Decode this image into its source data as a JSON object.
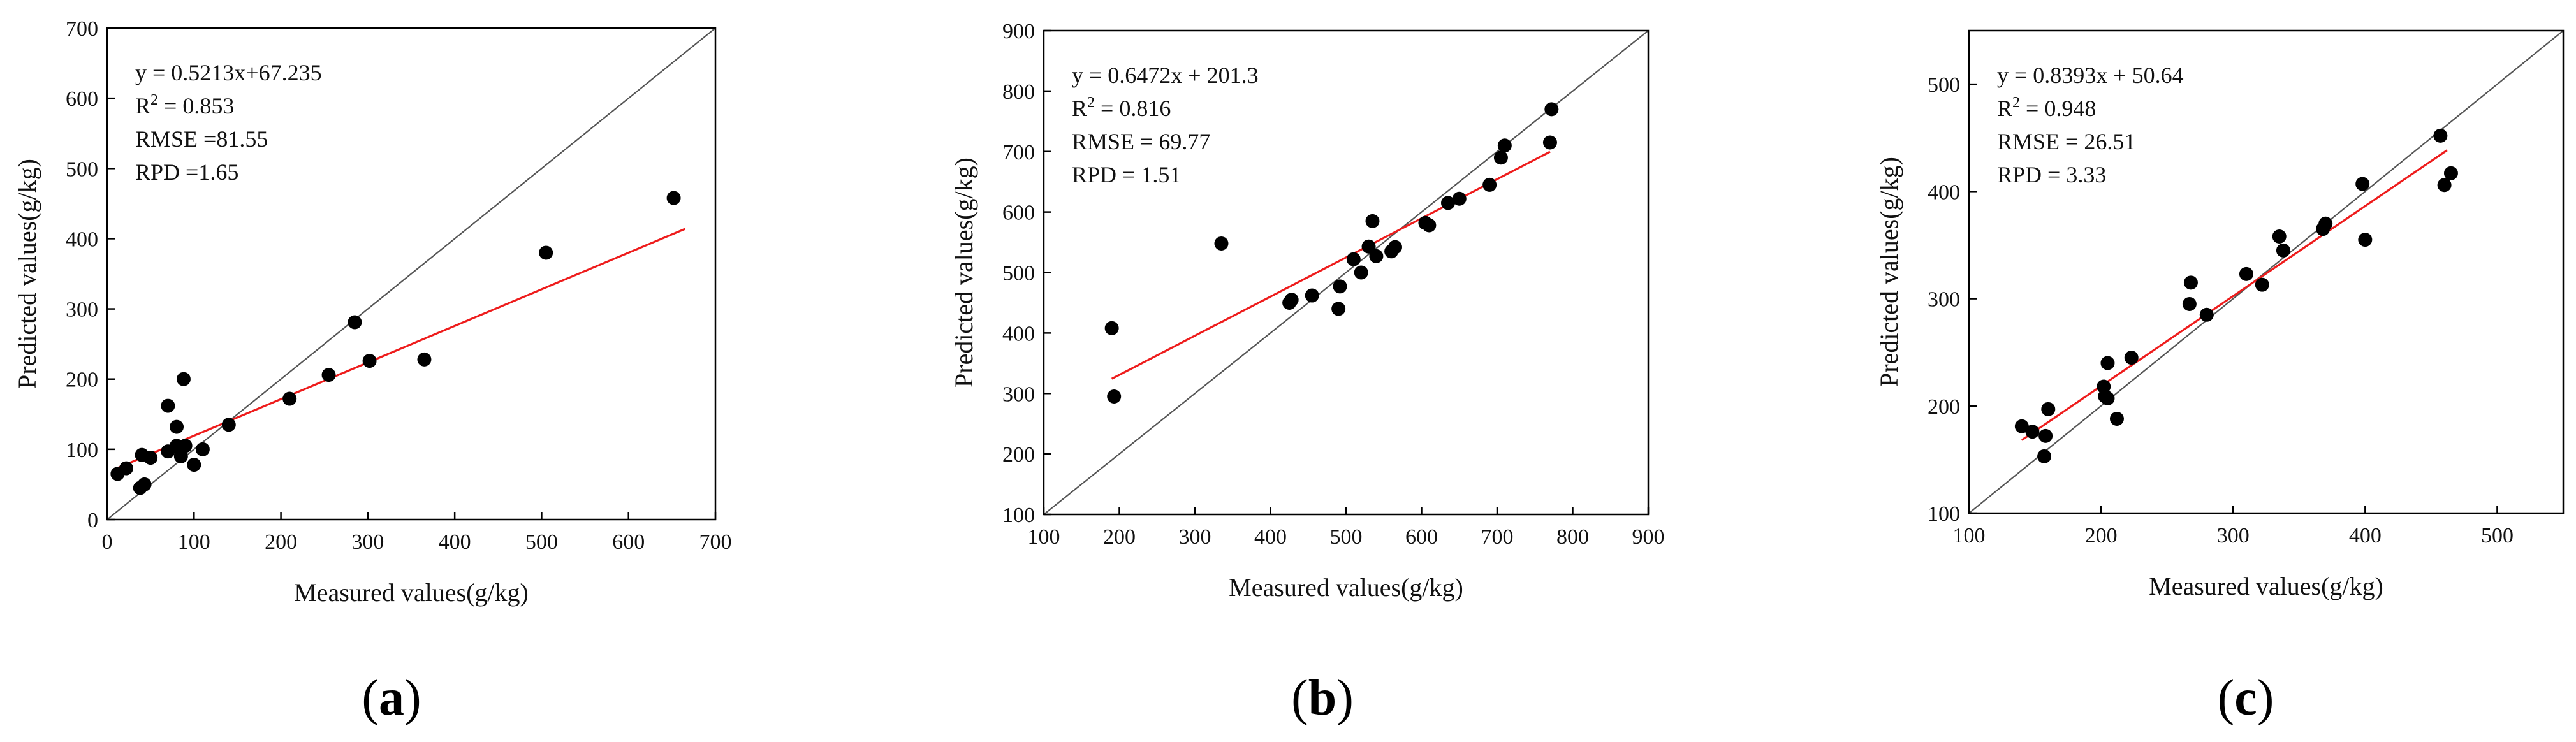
{
  "chart_data": [
    {
      "type": "scatter",
      "panel_label": "a",
      "caption_left": "(",
      "caption_right": ")",
      "xlabel": "Measured values(g/kg)",
      "ylabel": "Predicted values(g/kg)",
      "xlim": [
        0,
        700
      ],
      "ylim": [
        0,
        700
      ],
      "xticks": [
        0,
        100,
        200,
        300,
        400,
        500,
        600,
        700
      ],
      "yticks": [
        0,
        100,
        200,
        300,
        400,
        500,
        600,
        700
      ],
      "tick_labels_x": [
        "0",
        "100",
        "200",
        "300",
        "400",
        "500",
        "600",
        "700"
      ],
      "tick_labels_y": [
        "0",
        "100",
        "200",
        "300",
        "400",
        "500",
        "600",
        "700"
      ],
      "stats": [
        "y = 0.5213x+67.235",
        "R",
        "2",
        " = 0.853",
        "RMSE =81.55",
        "RPD =1.65"
      ],
      "identity_line": true,
      "fit": {
        "slope": 0.5213,
        "intercept": 67.235,
        "x_range": [
          10,
          665
        ],
        "color": "#ee1c1c"
      },
      "points": [
        [
          12,
          65
        ],
        [
          22,
          73
        ],
        [
          40,
          92
        ],
        [
          38,
          45
        ],
        [
          43,
          50
        ],
        [
          50,
          88
        ],
        [
          70,
          162
        ],
        [
          70,
          97
        ],
        [
          80,
          132
        ],
        [
          80,
          105
        ],
        [
          85,
          90
        ],
        [
          88,
          200
        ],
        [
          90,
          105
        ],
        [
          100,
          78
        ],
        [
          110,
          100
        ],
        [
          140,
          135
        ],
        [
          210,
          172
        ],
        [
          255,
          206
        ],
        [
          285,
          281
        ],
        [
          302,
          226
        ],
        [
          365,
          228
        ],
        [
          505,
          380
        ],
        [
          652,
          458
        ]
      ]
    },
    {
      "type": "scatter",
      "panel_label": "b",
      "caption_left": "(",
      "caption_right": ")",
      "xlabel": "Measured values(g/kg)",
      "ylabel": "Predicted values(g/kg)",
      "xlim": [
        100,
        900
      ],
      "ylim": [
        100,
        900
      ],
      "xticks": [
        100,
        200,
        300,
        400,
        500,
        600,
        700,
        800,
        900
      ],
      "yticks": [
        100,
        200,
        300,
        400,
        500,
        600,
        700,
        800,
        900
      ],
      "tick_labels_x": [
        "100",
        "200",
        "300",
        "400",
        "500",
        "600",
        "700",
        "800",
        "900"
      ],
      "tick_labels_y": [
        "100",
        "200",
        "300",
        "400",
        "500",
        "600",
        "700",
        "800",
        "900"
      ],
      "stats": [
        "y = 0.6472x + 201.3",
        "R",
        "2",
        " = 0.816",
        "RMSE = 69.77",
        "RPD = 1.51"
      ],
      "identity_line": true,
      "fit": {
        "slope": 0.6472,
        "intercept": 201.3,
        "x_range": [
          190,
          770
        ],
        "color": "#ee1c1c"
      },
      "points": [
        [
          190,
          408
        ],
        [
          193,
          295
        ],
        [
          335,
          548
        ],
        [
          425,
          450
        ],
        [
          428,
          455
        ],
        [
          455,
          462
        ],
        [
          490,
          440
        ],
        [
          492,
          477
        ],
        [
          510,
          522
        ],
        [
          520,
          500
        ],
        [
          530,
          543
        ],
        [
          535,
          585
        ],
        [
          540,
          527
        ],
        [
          560,
          535
        ],
        [
          565,
          542
        ],
        [
          605,
          582
        ],
        [
          610,
          578
        ],
        [
          635,
          615
        ],
        [
          650,
          622
        ],
        [
          690,
          645
        ],
        [
          705,
          690
        ],
        [
          710,
          710
        ],
        [
          770,
          715
        ],
        [
          772,
          770
        ]
      ]
    },
    {
      "type": "scatter",
      "panel_label": "c",
      "caption_left": "(",
      "caption_right": ")",
      "xlabel": "Measured values(g/kg)",
      "ylabel": "Predicted values(g/kg)",
      "xlim": [
        100,
        550
      ],
      "ylim": [
        100,
        550
      ],
      "xticks": [
        100,
        200,
        300,
        400,
        500
      ],
      "yticks": [
        100,
        200,
        300,
        400,
        500
      ],
      "tick_labels_x": [
        "100",
        "200",
        "300",
        "400",
        "500"
      ],
      "tick_labels_y": [
        "100",
        "200",
        "300",
        "400",
        "500"
      ],
      "stats": [
        "y = 0.8393x + 50.64",
        "R",
        "2",
        " = 0.948",
        "RMSE = 26.51",
        "RPD = 3.33"
      ],
      "identity_line": true,
      "fit": {
        "slope": 0.8393,
        "intercept": 50.64,
        "x_range": [
          140,
          462
        ],
        "color": "#ee1c1c"
      },
      "points": [
        [
          140,
          181
        ],
        [
          148,
          176
        ],
        [
          157,
          153
        ],
        [
          158,
          172
        ],
        [
          160,
          197
        ],
        [
          202,
          218
        ],
        [
          203,
          209
        ],
        [
          205,
          207
        ],
        [
          205,
          240
        ],
        [
          212,
          188
        ],
        [
          223,
          245
        ],
        [
          267,
          295
        ],
        [
          268,
          315
        ],
        [
          280,
          285
        ],
        [
          310,
          323
        ],
        [
          322,
          313
        ],
        [
          335,
          358
        ],
        [
          338,
          345
        ],
        [
          368,
          365
        ],
        [
          370,
          370
        ],
        [
          398,
          407
        ],
        [
          400,
          355
        ],
        [
          457,
          452
        ],
        [
          460,
          406
        ],
        [
          465,
          417
        ]
      ]
    }
  ]
}
